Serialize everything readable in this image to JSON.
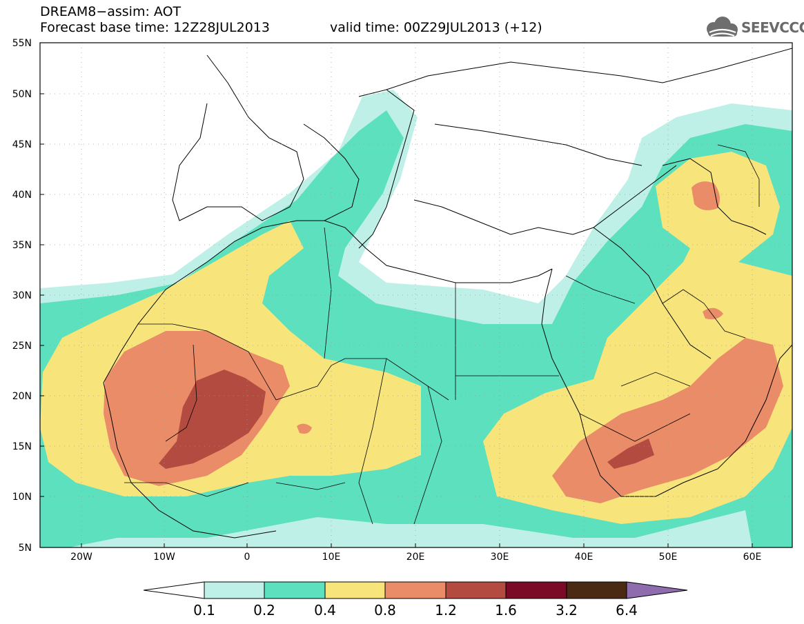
{
  "title": {
    "line1": "DREAM8−assim: AOT",
    "line2": "Forecast base time: 12Z28JUL2013",
    "valid": "valid time: 00Z29JUL2013 (+12)"
  },
  "logo": {
    "text": "SEEVCCC",
    "icon": "cloud-icon"
  },
  "axes": {
    "lat_labels": [
      "55N",
      "50N",
      "45N",
      "40N",
      "35N",
      "30N",
      "25N",
      "20N",
      "15N",
      "10N",
      "5N"
    ],
    "lon_labels": [
      "20W",
      "10W",
      "0",
      "10E",
      "20E",
      "30E",
      "40E",
      "50E",
      "60E"
    ]
  },
  "colorbar": {
    "labels": [
      "0.1",
      "0.2",
      "0.4",
      "0.8",
      "1.2",
      "1.6",
      "3.2",
      "6.4"
    ],
    "colors": [
      "#ffffff",
      "#bff0e8",
      "#5ce0bd",
      "#f7e57c",
      "#ea8c68",
      "#b34b40",
      "#7a0a26",
      "#4a2a12",
      "#8f6cad"
    ]
  }
}
